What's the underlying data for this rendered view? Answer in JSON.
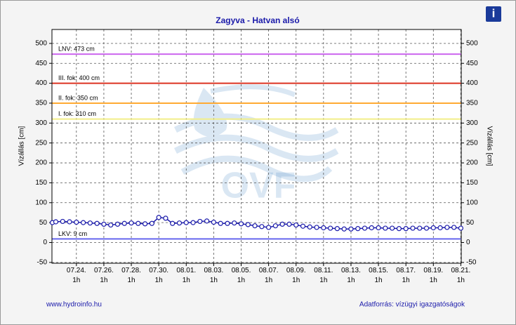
{
  "chart_data": {
    "type": "line",
    "title": "Zagyva - Hatvan alsó",
    "y_label": "Vízállás [cm]",
    "y2_label": "Vízállás [cm]",
    "watermark": "OVF",
    "info_icon": "i",
    "footer_left": "www.hydroinfo.hu",
    "footer_right": "Adatforrás: vízügyi igazgatóságok",
    "xlim": [
      22.22,
      52.03
    ],
    "ylim": [
      -52,
      535
    ],
    "yticks": [
      -50,
      0,
      50,
      100,
      150,
      200,
      250,
      300,
      350,
      400,
      450,
      500
    ],
    "xticks": [
      {
        "value": 24,
        "label": "07.24.\n1h"
      },
      {
        "value": 26,
        "label": "07.26.\n1h"
      },
      {
        "value": 28,
        "label": "07.28.\n1h"
      },
      {
        "value": 30,
        "label": "07.30.\n1h"
      },
      {
        "value": 32,
        "label": "08.01.\n1h"
      },
      {
        "value": 34,
        "label": "08.03.\n1h"
      },
      {
        "value": 36,
        "label": "08.05.\n1h"
      },
      {
        "value": 38,
        "label": "08.07.\n1h"
      },
      {
        "value": 40,
        "label": "08.09.\n1h"
      },
      {
        "value": 42,
        "label": "08.11.\n1h"
      },
      {
        "value": 44,
        "label": "08.13.\n1h"
      },
      {
        "value": 46,
        "label": "08.15.\n1h"
      },
      {
        "value": 48,
        "label": "08.17.\n1h"
      },
      {
        "value": 50,
        "label": "08.19.\n1h"
      },
      {
        "value": 52,
        "label": "08.21.\n1h"
      }
    ],
    "grid": true,
    "thresholds": [
      {
        "label": "LNV: 473 cm",
        "value": 473,
        "color": "#cc66ee"
      },
      {
        "label": "III. fok: 400 cm",
        "value": 400,
        "color": "#dd3322"
      },
      {
        "label": "II. fok: 350 cm",
        "value": 350,
        "color": "#ffaa33"
      },
      {
        "label": "I. fok: 310 cm",
        "value": 310,
        "color": "#f2ee88"
      },
      {
        "label": "LKV: 9 cm",
        "value": 9,
        "color": "#6666ee"
      }
    ],
    "x": [
      22.25,
      22.5,
      23,
      23.5,
      24,
      24.5,
      25,
      25.5,
      26,
      26.5,
      27,
      27.5,
      28,
      28.5,
      29,
      29.5,
      30,
      30.5,
      31,
      31.5,
      32,
      32.5,
      33,
      33.5,
      34,
      34.5,
      35,
      35.5,
      36,
      36.5,
      37,
      37.5,
      38,
      38.5,
      39,
      39.5,
      40,
      40.5,
      41,
      41.5,
      42,
      42.5,
      43,
      43.5,
      44,
      44.5,
      45,
      45.5,
      46,
      46.5,
      47,
      47.5,
      48,
      48.5,
      49,
      49.5,
      50,
      50.5,
      51,
      51.5,
      52
    ],
    "series": [
      {
        "color": "#1a1aaa",
        "values": [
          50,
          52,
          53,
          52,
          51,
          50,
          49,
          48,
          46,
          44,
          46,
          48,
          49,
          48,
          47,
          48,
          63,
          61,
          48,
          49,
          50,
          50,
          53,
          54,
          51,
          48,
          48,
          49,
          47,
          45,
          42,
          40,
          38,
          42,
          46,
          46,
          44,
          41,
          39,
          38,
          37,
          36,
          35,
          34,
          34,
          35,
          36,
          37,
          37,
          36,
          36,
          35,
          35,
          36,
          36,
          36,
          37,
          37,
          38,
          38,
          36
        ]
      }
    ]
  }
}
